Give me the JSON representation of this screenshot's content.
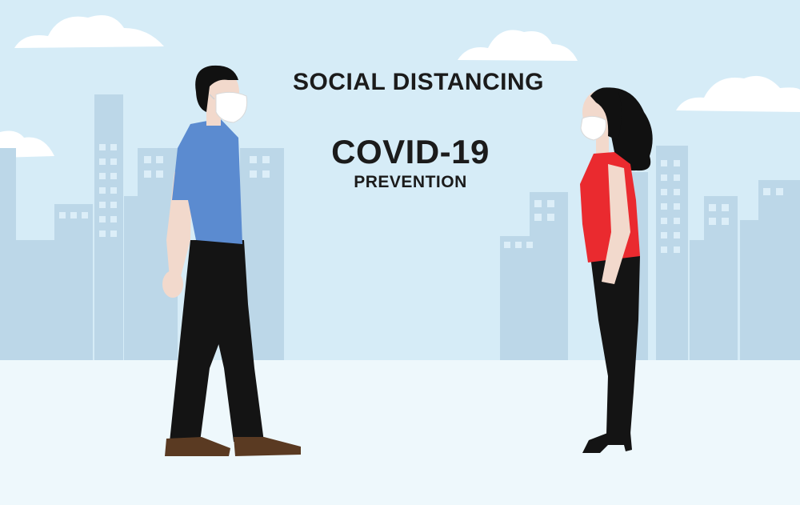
{
  "text": {
    "title": "SOCIAL DISTANCING",
    "headline": "COVID-19",
    "subheadline": "PREVENTION"
  },
  "colors": {
    "sky": "#d6ecf7",
    "buildings": "#bcd7e8",
    "windows": "#dceef8",
    "ground": "#eef8fc",
    "cloud": "#ffffff",
    "man_shirt": "#5b8bd0",
    "woman_top": "#ea2a2f",
    "pants": "#141414",
    "shoes": "#5a3a22",
    "skin": "#f2d9cc",
    "hair": "#111111",
    "mask": "#ffffff"
  }
}
